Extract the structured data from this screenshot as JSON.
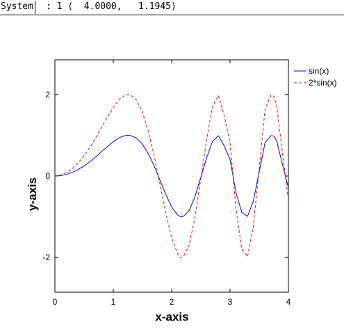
{
  "statusbar": {
    "menu_label": "System",
    "readout": ": 1 (  4.0000,   1.1945)"
  },
  "colors": {
    "series_1": "#0000ff",
    "series_2": "#ff0000",
    "axis": "#000000"
  },
  "chart_data": {
    "type": "line",
    "title": "",
    "xlabel": "x-axis",
    "ylabel": "y-axis",
    "xlim": [
      0,
      4
    ],
    "ylim": [
      -2.85,
      2.85
    ],
    "xticks": [
      0,
      1,
      2,
      3,
      4
    ],
    "yticks": [
      -2,
      0,
      2
    ],
    "grid": false,
    "legend_position": "outside-right-top",
    "series": [
      {
        "name": "sin(x)",
        "style": "solid",
        "x": [
          0,
          0.1,
          0.2,
          0.3,
          0.4,
          0.5,
          0.6,
          0.7,
          0.8,
          0.9,
          1.0,
          1.1,
          1.2,
          1.25,
          1.3,
          1.4,
          1.5,
          1.6,
          1.7,
          1.8,
          1.9,
          2.0,
          2.1,
          2.15,
          2.2,
          2.3,
          2.4,
          2.5,
          2.6,
          2.7,
          2.8,
          2.9,
          3.0,
          3.1,
          3.2,
          3.3,
          3.4,
          3.5,
          3.6,
          3.7,
          3.75,
          3.8,
          3.9,
          4.0
        ],
        "y": [
          0,
          0.01,
          0.04,
          0.09,
          0.16,
          0.25,
          0.35,
          0.47,
          0.6,
          0.72,
          0.84,
          0.94,
          0.99,
          1.0,
          0.99,
          0.93,
          0.78,
          0.55,
          0.25,
          -0.1,
          -0.45,
          -0.76,
          -0.95,
          -1.0,
          -0.99,
          -0.85,
          -0.5,
          -0.03,
          0.45,
          0.85,
          0.99,
          0.74,
          0.41,
          -0.39,
          -0.89,
          -0.99,
          -0.61,
          0.1,
          0.82,
          0.99,
          0.98,
          0.86,
          0.27,
          -0.29
        ]
      },
      {
        "name": "2*sin(x)",
        "style": "dashed",
        "x": [
          0,
          0.1,
          0.2,
          0.3,
          0.4,
          0.5,
          0.6,
          0.7,
          0.8,
          0.9,
          1.0,
          1.1,
          1.2,
          1.25,
          1.3,
          1.4,
          1.5,
          1.6,
          1.7,
          1.8,
          1.9,
          2.0,
          2.1,
          2.15,
          2.2,
          2.3,
          2.4,
          2.5,
          2.6,
          2.7,
          2.8,
          2.9,
          3.0,
          3.1,
          3.2,
          3.3,
          3.4,
          3.5,
          3.6,
          3.7,
          3.75,
          3.8,
          3.9,
          4.0
        ],
        "y": [
          0,
          0.02,
          0.08,
          0.18,
          0.32,
          0.5,
          0.7,
          0.94,
          1.2,
          1.44,
          1.68,
          1.88,
          1.98,
          2.0,
          1.98,
          1.86,
          1.56,
          1.1,
          0.5,
          -0.2,
          -0.9,
          -1.52,
          -1.9,
          -2.0,
          -1.98,
          -1.7,
          -1.0,
          -0.06,
          0.9,
          1.7,
          1.98,
          1.48,
          0.82,
          -0.78,
          -1.78,
          -1.98,
          -1.22,
          0.2,
          1.64,
          1.98,
          1.96,
          1.72,
          0.54,
          -0.58
        ]
      }
    ]
  }
}
